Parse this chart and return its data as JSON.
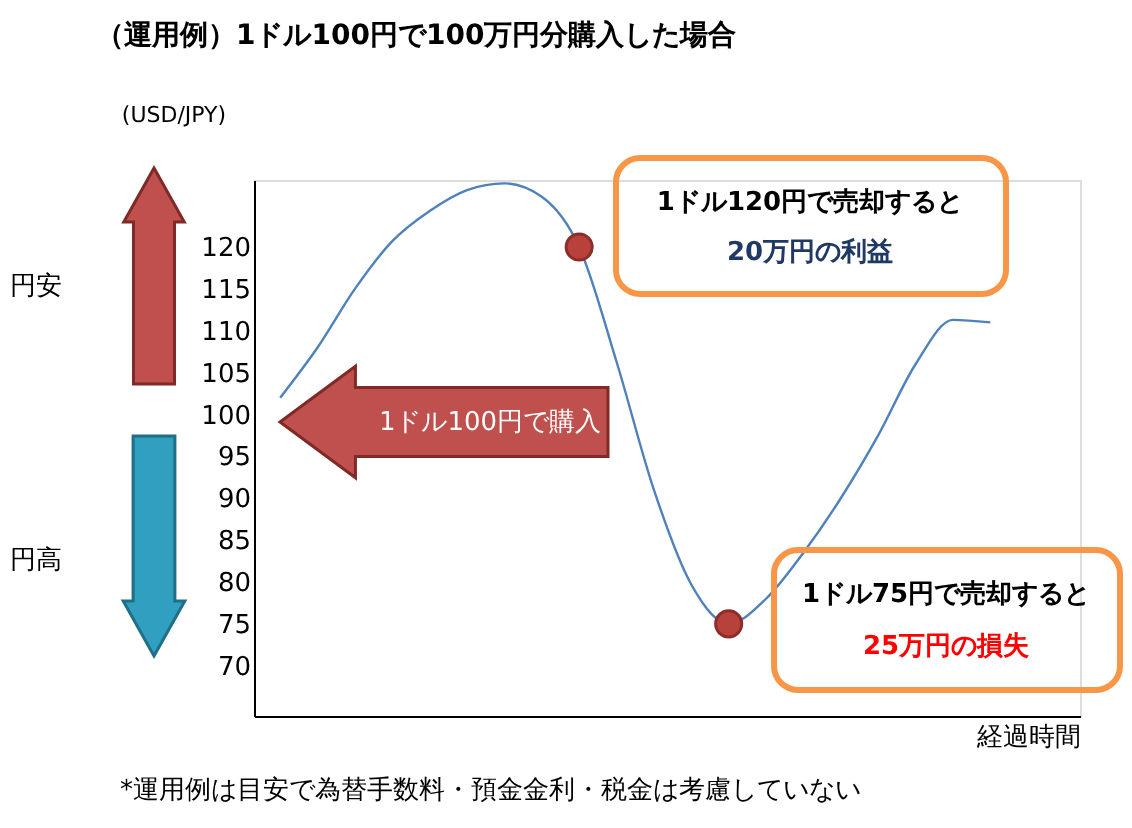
{
  "chart_data": {
    "type": "line",
    "title": "（運用例）1ドル100円で100万円分購入した場合",
    "ylabel": "(USD/JPY)",
    "xlabel": "経過時間",
    "categories": [
      null,
      null,
      null,
      null,
      null,
      null,
      null,
      null,
      null,
      null,
      null,
      null,
      null,
      null,
      null,
      null,
      null,
      null,
      null,
      null
    ],
    "series": [
      {
        "color": "#4f81bd",
        "marker": "none",
        "values": [
          102,
          108,
          115,
          120.7,
          124.3,
          126.8,
          127.6,
          126,
          120,
          106.3,
          91,
          79.7,
          75,
          78,
          83.5,
          90,
          97.5,
          106,
          111.3,
          111
        ]
      },
      {
        "type": "scatter",
        "color": "#b9413c",
        "marker": "circle",
        "values": [
          null,
          null,
          null,
          null,
          null,
          null,
          null,
          null,
          120,
          null,
          null,
          null,
          75,
          null,
          null,
          null,
          null,
          null,
          null,
          null
        ]
      }
    ],
    "ylim": [
      64,
      128
    ],
    "yticks": [
      70,
      75,
      80,
      85,
      90,
      95,
      100,
      105,
      110,
      115,
      120
    ],
    "grid": false,
    "annotations": [
      "1ドル100円で購入",
      "円安",
      "円高",
      "1ドル120円で売却すると",
      "20万円の利益",
      "1ドル75円で売却すると",
      "25万円の損失",
      "*運用例は目安で為替手数料・預金金利・税金は考慮していない"
    ]
  }
}
